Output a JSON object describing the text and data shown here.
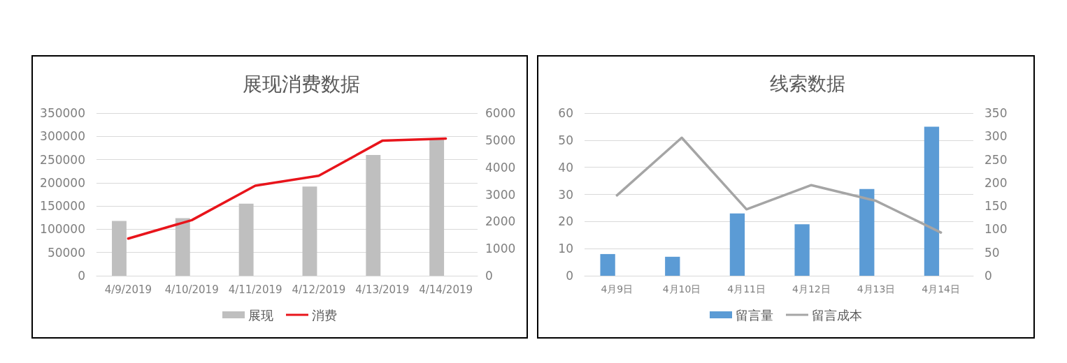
{
  "chart_data": [
    {
      "type": "bar",
      "title": "展现消费数据",
      "categories": [
        "4/9/2019",
        "4/10/2019",
        "4/11/2019",
        "4/12/2019",
        "4/13/2019",
        "4/14/2019"
      ],
      "series": [
        {
          "name": "展现",
          "color": "#bfbfbf",
          "values": [
            118000,
            124000,
            155000,
            192000,
            260000,
            293000
          ]
        },
        {
          "name": "消费",
          "type": "line",
          "axis": "y2",
          "color": "#e8141b",
          "values": [
            1370,
            2050,
            3320,
            3690,
            4980,
            5060
          ]
        }
      ],
      "ylim": [
        0,
        350000
      ],
      "yticks": [
        0,
        50000,
        100000,
        150000,
        200000,
        250000,
        300000,
        350000
      ],
      "y2lim": [
        0,
        6000
      ],
      "y2ticks": [
        0,
        1000,
        2000,
        3000,
        4000,
        5000,
        6000
      ],
      "grid": "y",
      "legend": "bottom",
      "marker": "none"
    },
    {
      "type": "bar",
      "title": "线索数据",
      "categories": [
        "4月9日",
        "4月10日",
        "4月11日",
        "4月12日",
        "4月13日",
        "4月14日"
      ],
      "series": [
        {
          "name": "留言量",
          "color": "#5b9bd5",
          "values": [
            8,
            7,
            23,
            19,
            32,
            55
          ]
        },
        {
          "name": "留言成本",
          "type": "line",
          "axis": "y2",
          "color": "#a5a5a5",
          "values": [
            173,
            297,
            143,
            195,
            161,
            93
          ]
        }
      ],
      "ylim": [
        0,
        60
      ],
      "yticks": [
        0,
        10,
        20,
        30,
        40,
        50,
        60
      ],
      "y2lim": [
        0,
        350
      ],
      "y2ticks": [
        0,
        50,
        100,
        150,
        200,
        250,
        300,
        350
      ],
      "grid": "y",
      "legend": "bottom",
      "marker": "none"
    }
  ]
}
